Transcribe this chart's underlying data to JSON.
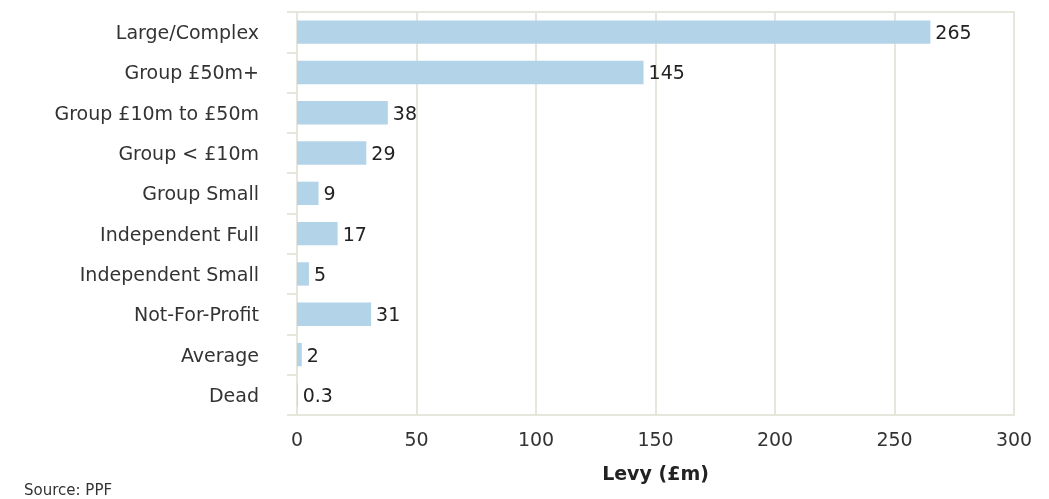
{
  "chart_data": {
    "type": "bar",
    "orientation": "horizontal",
    "categories": [
      "Large/Complex",
      "Group £50m+",
      "Group £10m to £50m",
      "Group < £10m",
      "Group Small",
      "Independent Full",
      "Independent Small",
      "Not-For-Profit",
      "Average",
      "Dead"
    ],
    "values": [
      265,
      145,
      38,
      29,
      9,
      17,
      5,
      31,
      2,
      0.3
    ],
    "color": "#b3d4e8",
    "data_labels": true,
    "xlim": [
      0,
      300
    ],
    "xticks": [
      0,
      50,
      100,
      150,
      200,
      250,
      300
    ],
    "xlabel": "Levy (£m)",
    "grid": "x",
    "annotations": [
      "Source: PPF"
    ]
  }
}
